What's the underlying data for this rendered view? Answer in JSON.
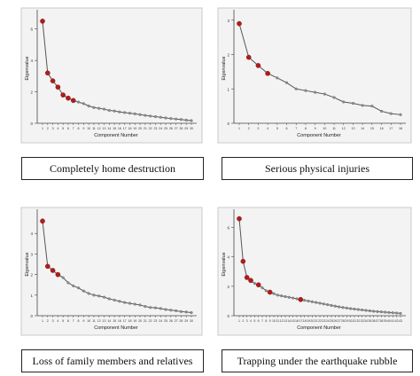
{
  "chart_data": [
    {
      "type": "line",
      "caption": "Completely home destruction",
      "xlabel": "Component Number",
      "ylabel": "Eigenvalue",
      "x_ticks": [
        "1",
        "2",
        "3",
        "4",
        "5",
        "6",
        "7",
        "8",
        "9",
        "10",
        "11",
        "12",
        "13",
        "14",
        "15",
        "16",
        "17",
        "18",
        "19",
        "20",
        "21",
        "22",
        "23",
        "24",
        "25",
        "26",
        "27",
        "28",
        "29",
        "30"
      ],
      "y_ticks": [
        0,
        2,
        4,
        6
      ],
      "ylim": [
        0,
        7
      ],
      "values": [
        6.5,
        3.2,
        2.7,
        2.3,
        1.8,
        1.6,
        1.45,
        1.35,
        1.25,
        1.1,
        1.0,
        0.95,
        0.9,
        0.82,
        0.78,
        0.72,
        0.68,
        0.64,
        0.6,
        0.55,
        0.5,
        0.46,
        0.42,
        0.38,
        0.34,
        0.3,
        0.27,
        0.24,
        0.2,
        0.17
      ],
      "highlight_count": 7,
      "colors": {
        "line": "#555555",
        "point": "#8c8c8c",
        "highlight": "#b01c1c",
        "axis": "#444444",
        "background": "#f3f3f3"
      }
    },
    {
      "type": "line",
      "caption": "Serious physical injuries",
      "xlabel": "Component Number",
      "ylabel": "Eigenvalue",
      "x_ticks": [
        "1",
        "2",
        "3",
        "4",
        "5",
        "6",
        "7",
        "8",
        "9",
        "10",
        "11",
        "12",
        "13",
        "14",
        "15",
        "16",
        "17",
        "18"
      ],
      "y_ticks": [
        0,
        1,
        2,
        3
      ],
      "ylim": [
        0,
        3.2
      ],
      "values": [
        2.9,
        1.92,
        1.68,
        1.45,
        1.32,
        1.18,
        1.0,
        0.95,
        0.9,
        0.85,
        0.75,
        0.62,
        0.58,
        0.52,
        0.5,
        0.35,
        0.28,
        0.25
      ],
      "highlight_count": 4,
      "colors": {
        "line": "#555555",
        "point": "#8c8c8c",
        "highlight": "#b01c1c",
        "axis": "#444444",
        "background": "#f3f3f3"
      }
    },
    {
      "type": "line",
      "caption": "Loss of family members and relatives",
      "xlabel": "Component Number",
      "ylabel": "Eigenvalue",
      "x_ticks": [
        "1",
        "2",
        "3",
        "4",
        "5",
        "6",
        "7",
        "8",
        "9",
        "10",
        "11",
        "12",
        "13",
        "14",
        "15",
        "16",
        "17",
        "18",
        "19",
        "20",
        "21",
        "22",
        "23",
        "24",
        "25",
        "26",
        "27",
        "28",
        "29",
        "30"
      ],
      "y_ticks": [
        0,
        1,
        2,
        3,
        4
      ],
      "ylim": [
        0,
        5
      ],
      "values": [
        4.6,
        2.4,
        2.2,
        2.0,
        1.85,
        1.6,
        1.45,
        1.35,
        1.2,
        1.08,
        1.0,
        0.96,
        0.9,
        0.82,
        0.76,
        0.7,
        0.64,
        0.6,
        0.56,
        0.52,
        0.45,
        0.4,
        0.38,
        0.35,
        0.3,
        0.27,
        0.24,
        0.2,
        0.18,
        0.15
      ],
      "highlight_count": 4,
      "colors": {
        "line": "#555555",
        "point": "#8c8c8c",
        "highlight": "#b01c1c",
        "axis": "#444444",
        "background": "#f3f3f3"
      }
    },
    {
      "type": "line",
      "caption": "Trapping under the earthquake rubble",
      "xlabel": "Component Number",
      "ylabel": "Eigenvalue",
      "x_ticks": [
        "1",
        "2",
        "3",
        "4",
        "5",
        "6",
        "7",
        "8",
        "9",
        "10",
        "11",
        "12",
        "13",
        "14",
        "15",
        "16",
        "17",
        "18",
        "19",
        "20",
        "21",
        "22",
        "23",
        "24",
        "25",
        "26",
        "27",
        "28",
        "29",
        "30",
        "31",
        "32",
        "33",
        "34",
        "35",
        "36",
        "37",
        "38",
        "39",
        "40",
        "41",
        "42",
        "43"
      ],
      "y_ticks": [
        0,
        2,
        4,
        6
      ],
      "ylim": [
        0,
        7
      ],
      "values": [
        6.6,
        3.7,
        2.6,
        2.4,
        2.2,
        2.1,
        1.9,
        1.7,
        1.6,
        1.5,
        1.4,
        1.35,
        1.3,
        1.25,
        1.2,
        1.15,
        1.1,
        1.05,
        1.0,
        0.95,
        0.9,
        0.85,
        0.8,
        0.75,
        0.7,
        0.65,
        0.6,
        0.56,
        0.52,
        0.48,
        0.45,
        0.42,
        0.39,
        0.36,
        0.33,
        0.3,
        0.28,
        0.26,
        0.24,
        0.22,
        0.2,
        0.18,
        0.16
      ],
      "highlight_points": [
        1,
        2,
        3,
        4,
        6,
        9,
        17
      ],
      "colors": {
        "line": "#555555",
        "point": "#8c8c8c",
        "highlight": "#b01c1c",
        "axis": "#444444",
        "background": "#f3f3f3"
      }
    }
  ]
}
